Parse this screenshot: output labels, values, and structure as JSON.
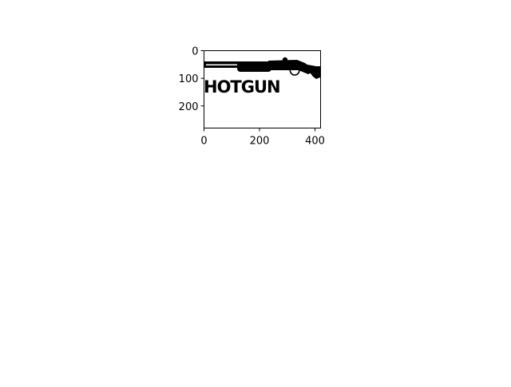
{
  "chart_data": {
    "type": "image",
    "title": "",
    "xlabel": "",
    "ylabel": "",
    "xlim": [
      0,
      420
    ],
    "ylim": [
      280,
      0
    ],
    "x_ticks": [
      0,
      200,
      400
    ],
    "y_ticks": [
      0,
      100,
      200
    ],
    "x_tick_labels": [
      "0",
      "200",
      "400"
    ],
    "y_tick_labels": [
      "0",
      "100",
      "200"
    ],
    "image_text": "HOTGUN",
    "colors": {
      "axes": "#000000",
      "background": "#ffffff",
      "image": "#000000"
    }
  }
}
